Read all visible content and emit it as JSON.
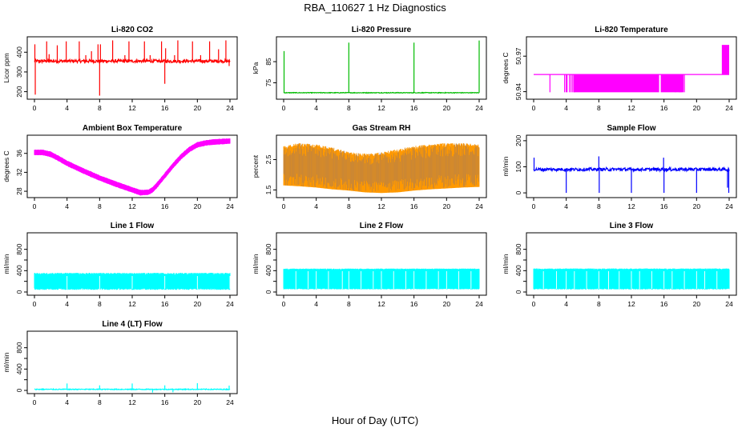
{
  "figure": {
    "title": "RBA_110627  1 Hz Diagnostics",
    "xlabel": "Hour of Day (UTC)"
  },
  "chart_data": [
    {
      "type": "line",
      "title": "Li-820 CO2",
      "ylabel": "Licor ppm",
      "color": "#ff0000",
      "style": "spiky",
      "x_ticks": [
        0,
        4,
        8,
        12,
        16,
        20,
        24
      ],
      "xlim": [
        0,
        24
      ],
      "ylim": [
        170,
        470
      ],
      "y_ticks": [
        200,
        300,
        400
      ],
      "y_tick_labels": [
        "200",
        "300",
        "400"
      ],
      "series": [
        {
          "baseline": 355,
          "noise": 8,
          "spikes": [
            {
              "x": 0.05,
              "y": 440
            },
            {
              "x": 0.1,
              "y": 185
            },
            {
              "x": 0.6,
              "y": 345
            },
            {
              "x": 1.5,
              "y": 455
            },
            {
              "x": 1.8,
              "y": 390
            },
            {
              "x": 2.8,
              "y": 435
            },
            {
              "x": 3.9,
              "y": 455
            },
            {
              "x": 5.5,
              "y": 455
            },
            {
              "x": 6.3,
              "y": 385
            },
            {
              "x": 7.0,
              "y": 405
            },
            {
              "x": 7.8,
              "y": 440
            },
            {
              "x": 8.0,
              "y": 180
            },
            {
              "x": 8.1,
              "y": 440
            },
            {
              "x": 9.6,
              "y": 460
            },
            {
              "x": 11.1,
              "y": 385
            },
            {
              "x": 11.6,
              "y": 455
            },
            {
              "x": 13.5,
              "y": 455
            },
            {
              "x": 14.2,
              "y": 385
            },
            {
              "x": 15.6,
              "y": 455
            },
            {
              "x": 16.0,
              "y": 240
            },
            {
              "x": 16.1,
              "y": 420
            },
            {
              "x": 17.2,
              "y": 385
            },
            {
              "x": 17.6,
              "y": 460
            },
            {
              "x": 19.4,
              "y": 455
            },
            {
              "x": 20.4,
              "y": 385
            },
            {
              "x": 21.5,
              "y": 455
            },
            {
              "x": 22.6,
              "y": 415
            },
            {
              "x": 23.5,
              "y": 460
            },
            {
              "x": 23.9,
              "y": 330
            }
          ]
        }
      ]
    },
    {
      "type": "line",
      "title": "Li-820 Pressure",
      "ylabel": "kPa",
      "color": "#00bb00",
      "style": "spiky",
      "x_ticks": [
        0,
        4,
        8,
        12,
        16,
        20,
        24
      ],
      "xlim": [
        0,
        24
      ],
      "ylim": [
        68,
        96
      ],
      "y_ticks": [
        75,
        85
      ],
      "y_tick_labels": [
        "75",
        "85"
      ],
      "series": [
        {
          "baseline": 70.3,
          "noise": 0.15,
          "spikes": [
            {
              "x": 0.05,
              "y": 90
            },
            {
              "x": 8.0,
              "y": 94
            },
            {
              "x": 16.0,
              "y": 94
            },
            {
              "x": 24.0,
              "y": 95
            }
          ]
        }
      ]
    },
    {
      "type": "line",
      "title": "Li-820 Temperature",
      "ylabel": "degrees C",
      "color": "#ff00ff",
      "style": "twolevel",
      "x_ticks": [
        0,
        4,
        8,
        12,
        16,
        20,
        24
      ],
      "xlim": [
        0,
        24
      ],
      "ylim": [
        50.935,
        50.985
      ],
      "y_ticks": [
        50.94,
        50.97
      ],
      "y_tick_labels": [
        "50.94",
        "50.97"
      ],
      "series": [
        {
          "low": 50.9395,
          "mid": 50.9545,
          "high": 50.9795,
          "dense_low": [
            [
              4.9,
              15.4
            ],
            [
              15.6,
              18.4
            ]
          ],
          "sparse_low": [
            2.0,
            3.8,
            4.0,
            4.1,
            4.4,
            4.6,
            4.8,
            5.0,
            17.4,
            17.9,
            18.1,
            18.5
          ],
          "dense_high": [
            [
              23.1,
              24.0
            ]
          ]
        }
      ]
    },
    {
      "type": "line",
      "title": "Ambient Box Temperature",
      "ylabel": "degrees C",
      "color": "#ff00ff",
      "style": "band",
      "x_ticks": [
        0,
        4,
        8,
        12,
        16,
        20,
        24
      ],
      "xlim": [
        0,
        24
      ],
      "ylim": [
        27,
        39.5
      ],
      "y_ticks": [
        28,
        32,
        36
      ],
      "y_tick_labels": [
        "28",
        "32",
        "36"
      ],
      "series": [
        {
          "x": [
            0,
            1,
            2,
            3,
            4,
            6,
            8,
            10,
            12,
            13,
            14,
            14.5,
            15,
            16,
            17,
            18,
            19,
            20,
            21,
            22,
            23,
            24
          ],
          "y": [
            36.2,
            36.2,
            35.8,
            34.9,
            33.9,
            32.3,
            30.8,
            29.5,
            28.3,
            27.7,
            27.8,
            28.3,
            29.2,
            31.3,
            33.4,
            35.3,
            36.8,
            37.8,
            38.2,
            38.4,
            38.5,
            38.6
          ],
          "halfwidth": 0.45
        }
      ]
    },
    {
      "type": "line",
      "title": "Gas Stream RH",
      "ylabel": "percent",
      "color": "#ff9900",
      "secondary_color": "#3355cc",
      "style": "noisefill",
      "x_ticks": [
        0,
        4,
        8,
        12,
        16,
        20,
        24
      ],
      "xlim": [
        0,
        24
      ],
      "ylim": [
        1.3,
        3.25
      ],
      "y_ticks": [
        1.5,
        2.5
      ],
      "y_tick_labels": [
        "1.5",
        "2.5"
      ],
      "series": [
        {
          "x": [
            0,
            2,
            4,
            6,
            8,
            10,
            12,
            14,
            16,
            18,
            20,
            22,
            24
          ],
          "lower": [
            1.65,
            1.62,
            1.58,
            1.52,
            1.48,
            1.42,
            1.4,
            1.42,
            1.48,
            1.52,
            1.55,
            1.58,
            1.6
          ],
          "upper": [
            2.95,
            3.05,
            3.0,
            2.9,
            2.75,
            2.7,
            2.75,
            2.85,
            2.95,
            3.0,
            3.05,
            3.05,
            3.0
          ]
        }
      ]
    },
    {
      "type": "line",
      "title": "Sample Flow",
      "ylabel": "ml/min",
      "color": "#0000ff",
      "style": "spiky",
      "x_ticks": [
        0,
        4,
        8,
        12,
        16,
        20,
        24
      ],
      "xlim": [
        0,
        24
      ],
      "ylim": [
        -12,
        215
      ],
      "y_ticks": [
        0,
        100,
        200
      ],
      "y_tick_labels": [
        "0",
        "100",
        "200"
      ],
      "series": [
        {
          "baseline": 90,
          "noise": 6,
          "spikes": [
            {
              "x": 0.05,
              "y": 135
            },
            {
              "x": 4.0,
              "y": 0
            },
            {
              "x": 8.0,
              "y": 140
            },
            {
              "x": 8.05,
              "y": 0
            },
            {
              "x": 12.0,
              "y": 0
            },
            {
              "x": 15.95,
              "y": 135
            },
            {
              "x": 16.0,
              "y": 0
            },
            {
              "x": 20.0,
              "y": 0
            },
            {
              "x": 23.8,
              "y": 20
            },
            {
              "x": 23.95,
              "y": 0
            }
          ]
        }
      ]
    },
    {
      "type": "line",
      "title": "Line 1 Flow",
      "ylabel": "ml/min",
      "color": "#00ffff",
      "style": "flowband",
      "x_ticks": [
        0,
        4,
        8,
        12,
        16,
        20,
        24
      ],
      "xlim": [
        0,
        24
      ],
      "ylim": [
        -30,
        1080
      ],
      "y_ticks": [
        0,
        200,
        400,
        600,
        800
      ],
      "y_tick_labels": [
        "0",
        "400",
        "800"
      ],
      "y_tick_label_values": [
        0,
        400,
        800
      ],
      "series": [
        {
          "low": 60,
          "high": 340,
          "gaps": [
            4.0,
            8.0,
            12.0,
            16.0,
            20.0,
            24.0
          ],
          "jitter": 20
        }
      ]
    },
    {
      "type": "line",
      "title": "Line 2 Flow",
      "ylabel": "ml/min",
      "color": "#00ffff",
      "style": "flowband",
      "x_ticks": [
        0,
        4,
        8,
        12,
        16,
        20,
        24
      ],
      "xlim": [
        0,
        24
      ],
      "ylim": [
        -30,
        1080
      ],
      "y_ticks": [
        0,
        200,
        400,
        600,
        800
      ],
      "y_tick_labels": [
        "0",
        "400",
        "800"
      ],
      "y_tick_label_values": [
        0,
        400,
        800
      ],
      "series": [
        {
          "low": 60,
          "high": 430,
          "gaps": [
            1.5,
            3.0,
            4.0,
            5.5,
            7.2,
            8.0,
            9.5,
            11.0,
            12.0,
            13.5,
            15.0,
            16.0,
            17.5,
            19.0,
            20.0,
            21.5,
            23.0
          ],
          "jitter": 10
        }
      ]
    },
    {
      "type": "line",
      "title": "Line 3 Flow",
      "ylabel": "ml/min",
      "color": "#00ffff",
      "style": "flowband",
      "x_ticks": [
        0,
        4,
        8,
        12,
        16,
        20,
        24
      ],
      "xlim": [
        0,
        24
      ],
      "ylim": [
        -30,
        1080
      ],
      "y_ticks": [
        0,
        200,
        400,
        600,
        800
      ],
      "y_tick_labels": [
        "0",
        "400",
        "800"
      ],
      "y_tick_label_values": [
        0,
        400,
        800
      ],
      "series": [
        {
          "low": 60,
          "high": 430,
          "gaps": [
            1.2,
            2.8,
            4.0,
            5.0,
            6.5,
            8.0,
            9.2,
            10.5,
            12.0,
            13.0,
            14.5,
            16.0,
            17.0,
            18.5,
            20.0,
            21.0,
            22.5
          ],
          "jitter": 12
        }
      ]
    },
    {
      "type": "line",
      "title": "Line 4 (LT) Flow",
      "ylabel": "ml/min",
      "color": "#00ffff",
      "style": "spiky",
      "x_ticks": [
        0,
        4,
        8,
        12,
        16,
        20,
        24
      ],
      "xlim": [
        0,
        24
      ],
      "ylim": [
        -30,
        1080
      ],
      "y_ticks": [
        0,
        200,
        400,
        600,
        800
      ],
      "y_tick_labels": [
        "0",
        "400",
        "800"
      ],
      "y_tick_label_values": [
        0,
        400,
        800
      ],
      "series": [
        {
          "baseline": 20,
          "noise": 8,
          "spikes": [
            {
              "x": 4.0,
              "y": 130
            },
            {
              "x": 8.0,
              "y": 95
            },
            {
              "x": 12.0,
              "y": 130
            },
            {
              "x": 16.0,
              "y": 95
            },
            {
              "x": 20.0,
              "y": 135
            },
            {
              "x": 23.9,
              "y": 90
            },
            {
              "x": 14.5,
              "y": -40
            },
            {
              "x": 17.0,
              "y": -35
            }
          ]
        }
      ]
    }
  ]
}
